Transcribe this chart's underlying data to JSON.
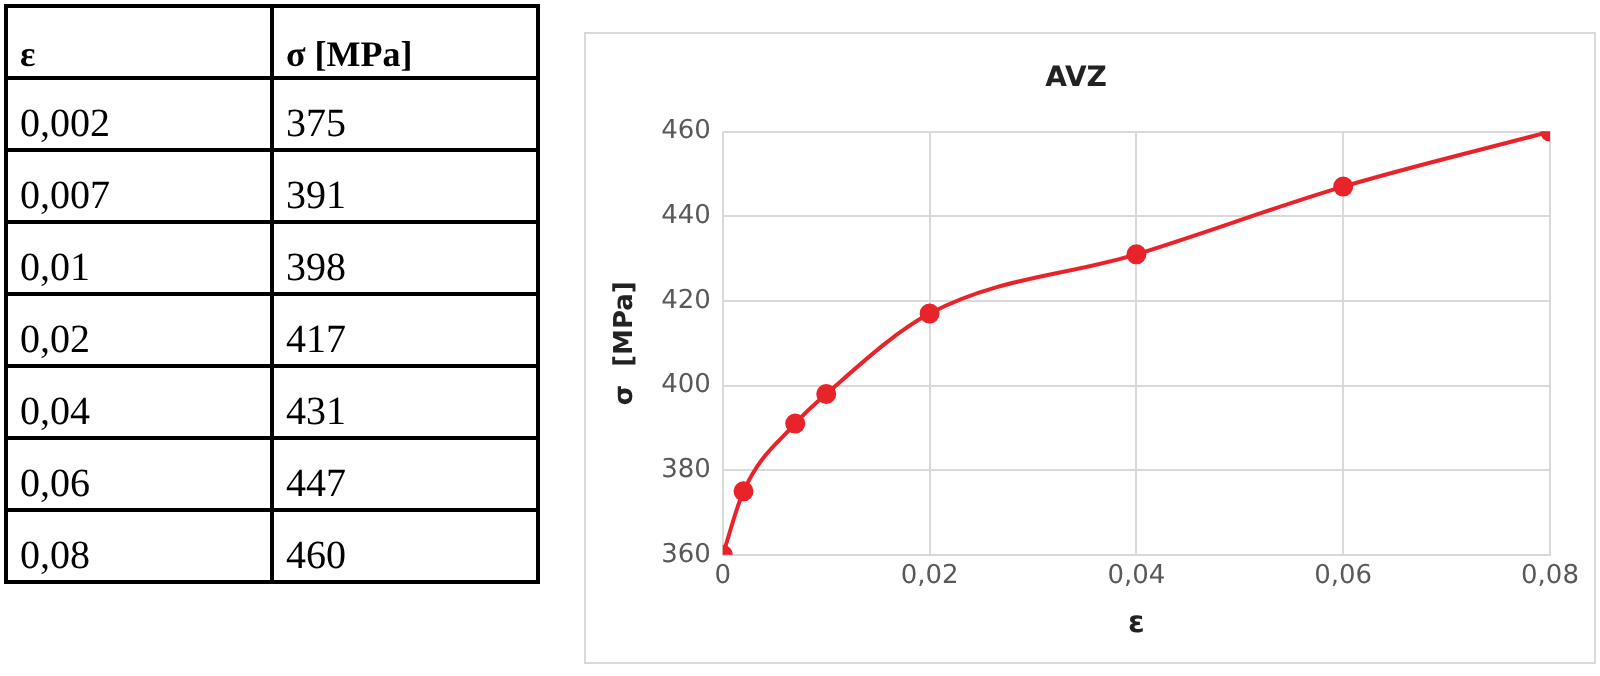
{
  "chart_data": [
    {
      "type": "other",
      "annotations": [
        "ε",
        "σ  [MPa]",
        "0,002",
        "375",
        "0,007",
        "391",
        "0,01",
        "398",
        "0,02",
        "417",
        "0,04",
        "431",
        "0,06",
        "447",
        "0,08",
        "460"
      ]
    },
    {
      "type": "line",
      "title": "AVZ",
      "xlabel": "ε",
      "ylabel": "σ  [MPa]",
      "x": [
        0,
        0.002,
        0.007,
        0.01,
        0.02,
        0.04,
        0.06,
        0.08
      ],
      "series": [
        {
          "color": "#e8232a",
          "values": [
            360,
            375,
            391,
            398,
            417,
            431,
            447,
            460
          ]
        }
      ],
      "xlim": [
        0,
        0.08
      ],
      "xticks": [
        0,
        {
          "value": 0.02,
          "label": "0,02"
        },
        {
          "value": 0.04,
          "label": "0,04"
        },
        {
          "value": 0.06,
          "label": "0,06"
        },
        {
          "value": 0.08,
          "label": "0,08"
        }
      ],
      "ylim": [
        360,
        460
      ],
      "yticks": [
        360,
        380,
        400,
        420,
        440,
        460
      ],
      "grid": true,
      "marker": "circle",
      "line_style": "solid"
    }
  ]
}
